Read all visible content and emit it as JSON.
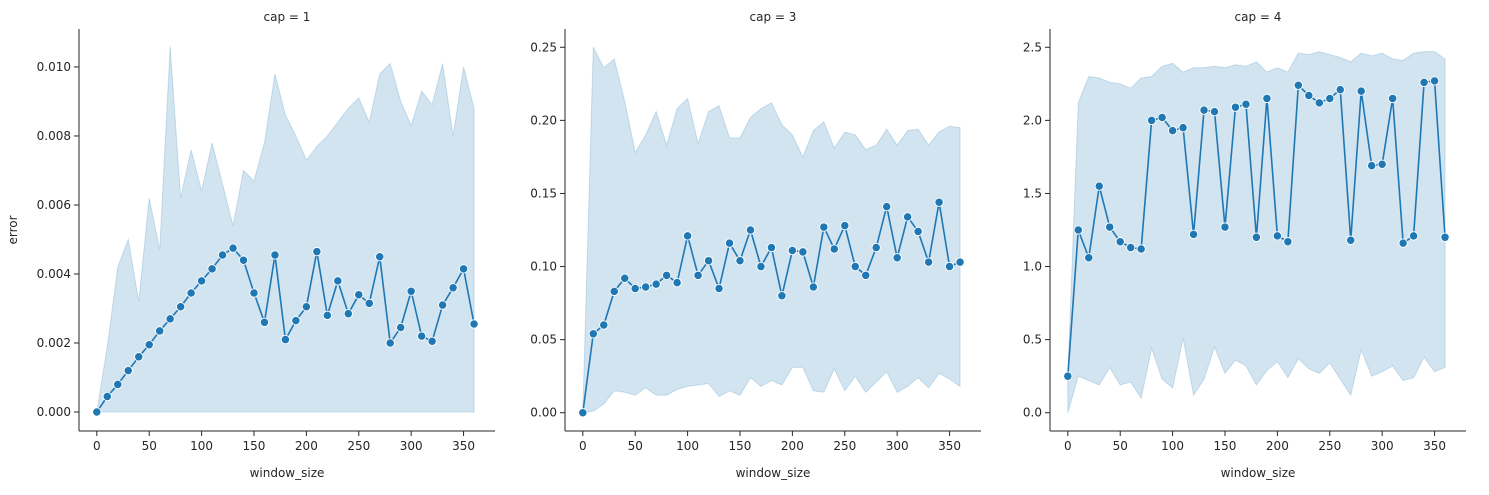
{
  "chart_data": [
    {
      "type": "line",
      "title": "cap = 1",
      "xlabel": "window_size",
      "ylabel": "error",
      "xlim": [
        -17,
        380
      ],
      "ylim": [
        -0.00055,
        0.0111
      ],
      "x_ticks": [
        0,
        50,
        100,
        150,
        200,
        250,
        300,
        350
      ],
      "y_ticks": [
        0.0,
        0.002,
        0.004,
        0.006,
        0.008,
        0.01
      ],
      "y_tick_labels": [
        "0.000",
        "0.002",
        "0.004",
        "0.006",
        "0.008",
        "0.010"
      ],
      "x_tick_labels": [
        "0",
        "50",
        "100",
        "150",
        "200",
        "250",
        "300",
        "350"
      ],
      "grid": false,
      "series": [
        {
          "x": [
            0,
            10,
            20,
            30,
            40,
            50,
            60,
            70,
            80,
            90,
            100,
            110,
            120,
            130,
            140,
            150,
            160,
            170,
            180,
            190,
            200,
            210,
            220,
            230,
            240,
            250,
            260,
            270,
            280,
            290,
            300,
            310,
            320,
            330,
            340,
            350,
            360
          ],
          "values": [
            0.0,
            0.00045,
            0.0008,
            0.0012,
            0.0016,
            0.00195,
            0.00235,
            0.0027,
            0.00305,
            0.00345,
            0.0038,
            0.00415,
            0.00455,
            0.00475,
            0.0044,
            0.00345,
            0.0026,
            0.00455,
            0.0021,
            0.00265,
            0.00305,
            0.00465,
            0.0028,
            0.0038,
            0.00285,
            0.0034,
            0.00315,
            0.0045,
            0.002,
            0.00245,
            0.0035,
            0.0022,
            0.00205,
            0.0031,
            0.0036,
            0.00415,
            0.00255
          ],
          "band_lower": [
            0,
            0,
            0,
            0,
            0,
            0,
            0,
            0,
            0,
            0,
            0,
            0,
            0,
            0,
            0,
            0,
            0,
            0,
            0,
            0,
            0,
            0,
            0,
            0,
            0,
            0,
            0,
            0,
            0,
            0,
            0,
            0,
            0,
            0,
            0,
            0,
            0
          ],
          "band_upper": [
            0.0,
            0.0019,
            0.0042,
            0.005,
            0.0032,
            0.0062,
            0.0047,
            0.0106,
            0.0062,
            0.0076,
            0.0064,
            0.0078,
            0.0066,
            0.0054,
            0.007,
            0.0067,
            0.0078,
            0.0098,
            0.0086,
            0.008,
            0.0073,
            0.0077,
            0.008,
            0.0084,
            0.0088,
            0.0091,
            0.0084,
            0.0098,
            0.0101,
            0.009,
            0.0083,
            0.0093,
            0.0089,
            0.0101,
            0.008,
            0.01,
            0.0088
          ]
        }
      ]
    },
    {
      "type": "line",
      "title": "cap = 3",
      "xlabel": "window_size",
      "ylabel": "",
      "xlim": [
        -17,
        380
      ],
      "ylim": [
        -0.0125,
        0.2625
      ],
      "x_ticks": [
        0,
        50,
        100,
        150,
        200,
        250,
        300,
        350
      ],
      "y_ticks": [
        0.0,
        0.05,
        0.1,
        0.15,
        0.2,
        0.25
      ],
      "y_tick_labels": [
        "0.00",
        "0.05",
        "0.10",
        "0.15",
        "0.20",
        "0.25"
      ],
      "x_tick_labels": [
        "0",
        "50",
        "100",
        "150",
        "200",
        "250",
        "300",
        "350"
      ],
      "grid": false,
      "series": [
        {
          "x": [
            0,
            10,
            20,
            30,
            40,
            50,
            60,
            70,
            80,
            90,
            100,
            110,
            120,
            130,
            140,
            150,
            160,
            170,
            180,
            190,
            200,
            210,
            220,
            230,
            240,
            250,
            260,
            270,
            280,
            290,
            300,
            310,
            320,
            330,
            340,
            350,
            360
          ],
          "values": [
            0.0,
            0.054,
            0.06,
            0.083,
            0.092,
            0.085,
            0.086,
            0.088,
            0.094,
            0.089,
            0.121,
            0.094,
            0.104,
            0.085,
            0.116,
            0.104,
            0.125,
            0.1,
            0.113,
            0.08,
            0.111,
            0.11,
            0.086,
            0.127,
            0.112,
            0.128,
            0.1,
            0.094,
            0.113,
            0.141,
            0.106,
            0.134,
            0.124,
            0.103,
            0.144,
            0.1,
            0.103
          ],
          "band_lower": [
            0.0,
            0.001,
            0.006,
            0.015,
            0.014,
            0.012,
            0.017,
            0.012,
            0.012,
            0.016,
            0.018,
            0.019,
            0.02,
            0.011,
            0.015,
            0.012,
            0.024,
            0.018,
            0.022,
            0.019,
            0.031,
            0.031,
            0.015,
            0.014,
            0.03,
            0.015,
            0.025,
            0.014,
            0.021,
            0.028,
            0.014,
            0.018,
            0.024,
            0.017,
            0.027,
            0.023,
            0.018
          ],
          "band_upper": [
            0.0,
            0.25,
            0.236,
            0.242,
            0.213,
            0.178,
            0.19,
            0.206,
            0.183,
            0.208,
            0.215,
            0.184,
            0.206,
            0.21,
            0.188,
            0.188,
            0.202,
            0.208,
            0.212,
            0.197,
            0.19,
            0.175,
            0.193,
            0.199,
            0.181,
            0.192,
            0.19,
            0.18,
            0.183,
            0.194,
            0.183,
            0.193,
            0.194,
            0.183,
            0.192,
            0.196,
            0.195
          ]
        }
      ]
    },
    {
      "type": "line",
      "title": "cap = 4",
      "xlabel": "window_size",
      "ylabel": "",
      "xlim": [
        -17,
        380
      ],
      "ylim": [
        -0.125,
        2.625
      ],
      "x_ticks": [
        0,
        50,
        100,
        150,
        200,
        250,
        300,
        350
      ],
      "y_ticks": [
        0.0,
        0.5,
        1.0,
        1.5,
        2.0,
        2.5
      ],
      "y_tick_labels": [
        "0.0",
        "0.5",
        "1.0",
        "1.5",
        "2.0",
        "2.5"
      ],
      "x_tick_labels": [
        "0",
        "50",
        "100",
        "150",
        "200",
        "250",
        "300",
        "350"
      ],
      "grid": false,
      "series": [
        {
          "x": [
            0,
            10,
            20,
            30,
            40,
            50,
            60,
            70,
            80,
            90,
            100,
            110,
            120,
            130,
            140,
            150,
            160,
            170,
            180,
            190,
            200,
            210,
            220,
            230,
            240,
            250,
            260,
            270,
            280,
            290,
            300,
            310,
            320,
            330,
            340,
            350,
            360
          ],
          "values": [
            0.25,
            1.25,
            1.06,
            1.55,
            1.27,
            1.17,
            1.13,
            1.12,
            2.0,
            2.02,
            1.93,
            1.95,
            1.22,
            2.07,
            2.06,
            1.27,
            2.09,
            2.11,
            1.2,
            2.15,
            1.21,
            1.17,
            2.24,
            2.17,
            2.12,
            2.15,
            2.21,
            1.18,
            2.2,
            1.69,
            1.7,
            2.15,
            1.16,
            1.21,
            2.26,
            2.27,
            1.2
          ],
          "band_lower": [
            0.0,
            0.25,
            0.22,
            0.19,
            0.31,
            0.19,
            0.21,
            0.1,
            0.44,
            0.23,
            0.17,
            0.51,
            0.12,
            0.23,
            0.45,
            0.27,
            0.36,
            0.32,
            0.19,
            0.29,
            0.35,
            0.24,
            0.37,
            0.3,
            0.27,
            0.34,
            0.23,
            0.12,
            0.43,
            0.25,
            0.28,
            0.32,
            0.22,
            0.24,
            0.38,
            0.28,
            0.31
          ],
          "band_upper": [
            0.25,
            2.12,
            2.3,
            2.29,
            2.26,
            2.25,
            2.22,
            2.29,
            2.3,
            2.37,
            2.39,
            2.33,
            2.36,
            2.36,
            2.37,
            2.36,
            2.38,
            2.37,
            2.4,
            2.33,
            2.36,
            2.33,
            2.46,
            2.45,
            2.47,
            2.45,
            2.43,
            2.4,
            2.46,
            2.44,
            2.46,
            2.42,
            2.41,
            2.46,
            2.47,
            2.47,
            2.42
          ]
        }
      ]
    }
  ],
  "colors": {
    "line": "#1f77b4",
    "band": "#1f77b4",
    "marker_edge": "#ffffff",
    "axis": "#262626"
  }
}
